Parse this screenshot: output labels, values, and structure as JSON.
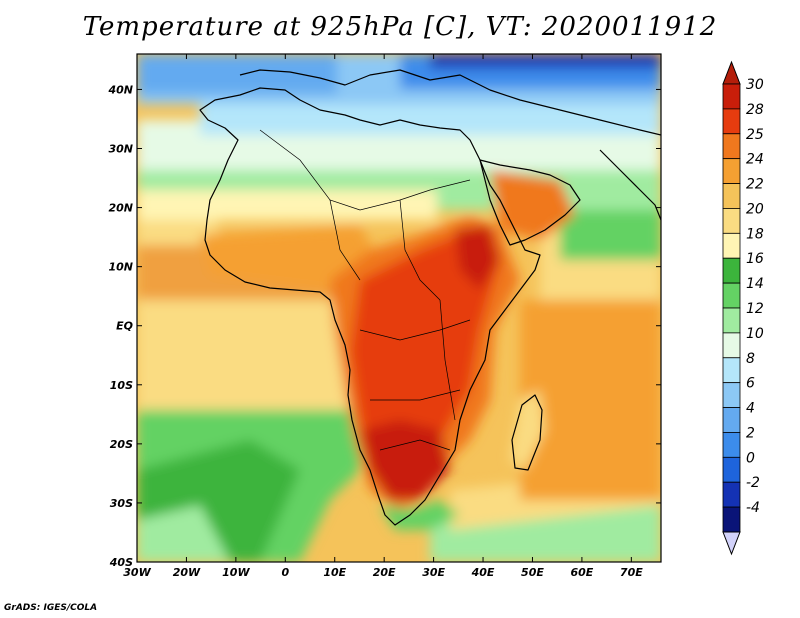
{
  "title": "Temperature at 925hPa [C], VT: 2020011912",
  "credit": "GrADS: IGES/COLA",
  "map": {
    "lon_range": [
      -30,
      76
    ],
    "lat_range": [
      -40,
      46
    ],
    "lon_ticks": [
      {
        "value": -30,
        "label": "30W"
      },
      {
        "value": -20,
        "label": "20W"
      },
      {
        "value": -10,
        "label": "10W"
      },
      {
        "value": 0,
        "label": "0"
      },
      {
        "value": 10,
        "label": "10E"
      },
      {
        "value": 20,
        "label": "20E"
      },
      {
        "value": 30,
        "label": "30E"
      },
      {
        "value": 40,
        "label": "40E"
      },
      {
        "value": 50,
        "label": "50E"
      },
      {
        "value": 60,
        "label": "60E"
      },
      {
        "value": 70,
        "label": "70E"
      }
    ],
    "lat_ticks": [
      {
        "value": -40,
        "label": "40S"
      },
      {
        "value": -30,
        "label": "30S"
      },
      {
        "value": -20,
        "label": "20S"
      },
      {
        "value": -10,
        "label": "10S"
      },
      {
        "value": 0,
        "label": "EQ"
      },
      {
        "value": 10,
        "label": "10N"
      },
      {
        "value": 20,
        "label": "20N"
      },
      {
        "value": 30,
        "label": "30N"
      },
      {
        "value": 40,
        "label": "40N"
      }
    ]
  },
  "colorbar": {
    "levels": [
      {
        "label": "30",
        "color": "#c81e0a"
      },
      {
        "label": "28",
        "color": "#e63c0f"
      },
      {
        "label": "25",
        "color": "#f0781e"
      },
      {
        "label": "24",
        "color": "#f5a032"
      },
      {
        "label": "22",
        "color": "#f5c35a"
      },
      {
        "label": "20",
        "color": "#fadc82"
      },
      {
        "label": "18",
        "color": "#fff5b4"
      },
      {
        "label": "16",
        "color": "#3cb43c"
      },
      {
        "label": "14",
        "color": "#64d264"
      },
      {
        "label": "12",
        "color": "#a0eba0"
      },
      {
        "label": "10",
        "color": "#e6fae6"
      },
      {
        "label": "8",
        "color": "#b4e6fa"
      },
      {
        "label": "6",
        "color": "#8cc8f5"
      },
      {
        "label": "4",
        "color": "#64aaf0"
      },
      {
        "label": "2",
        "color": "#3c8ceb"
      },
      {
        "label": "0",
        "color": "#1e64dc"
      },
      {
        "label": "-2",
        "color": "#1432b4"
      },
      {
        "label": "-4",
        "color": "#0a1478"
      }
    ],
    "top_cap_color": "#b41e0a",
    "bottom_cap_color": "#d2d2fa"
  },
  "colors": {
    "ocean_warm": "#f5c35a",
    "ocean_mid": "#fadc82",
    "ocean_green": "#64d264",
    "coast": "#000000"
  }
}
